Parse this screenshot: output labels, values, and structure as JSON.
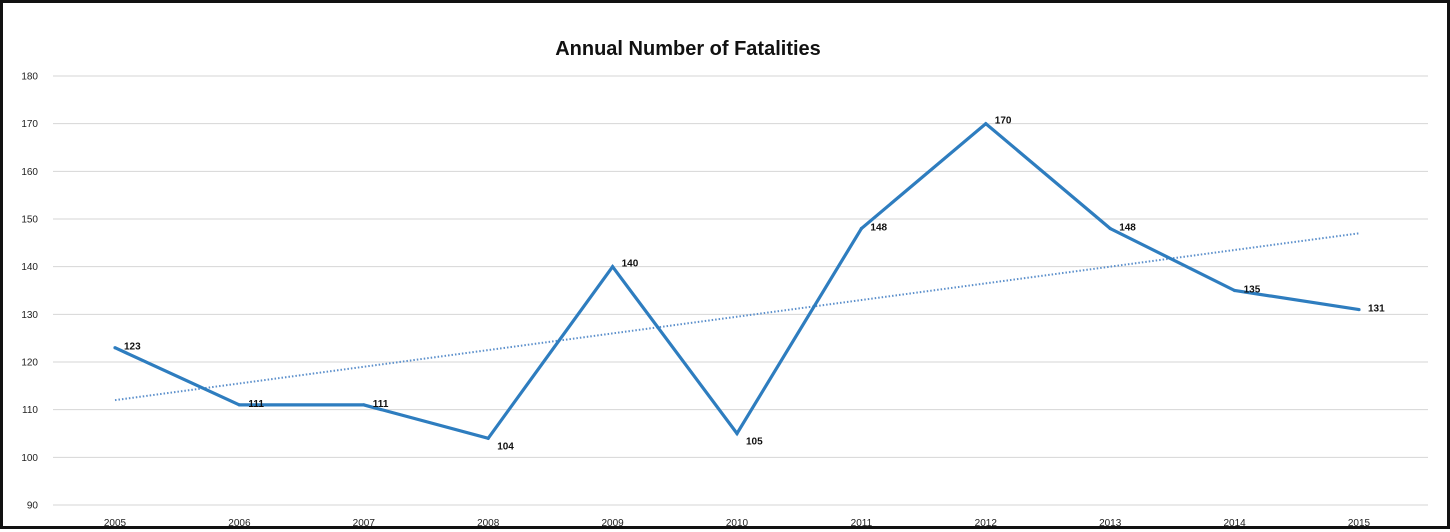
{
  "chart_data": {
    "type": "line",
    "title": "Annual Number of Fatalities",
    "xlabel": "",
    "ylabel": "",
    "categories": [
      "2005",
      "2006",
      "2007",
      "2008",
      "2009",
      "2010",
      "2011",
      "2012",
      "2013",
      "2014",
      "2015"
    ],
    "series": [
      {
        "values": [
          123,
          111,
          111,
          104,
          140,
          105,
          148,
          170,
          148,
          135,
          131
        ],
        "color": "#2e7dbf",
        "data_labels": [
          "123",
          "111",
          "111",
          "104",
          "140",
          "105",
          "148",
          "170",
          "148",
          "135",
          "131"
        ]
      }
    ],
    "trendline": {
      "style": "dotted",
      "color": "#5b8fcb",
      "start": 112,
      "end": 147
    },
    "ylim": [
      90,
      180
    ],
    "yticks": [
      "180",
      "170",
      "160",
      "150",
      "140",
      "130",
      "120",
      "110",
      "100",
      "90"
    ],
    "grid": true,
    "legend": "none"
  }
}
